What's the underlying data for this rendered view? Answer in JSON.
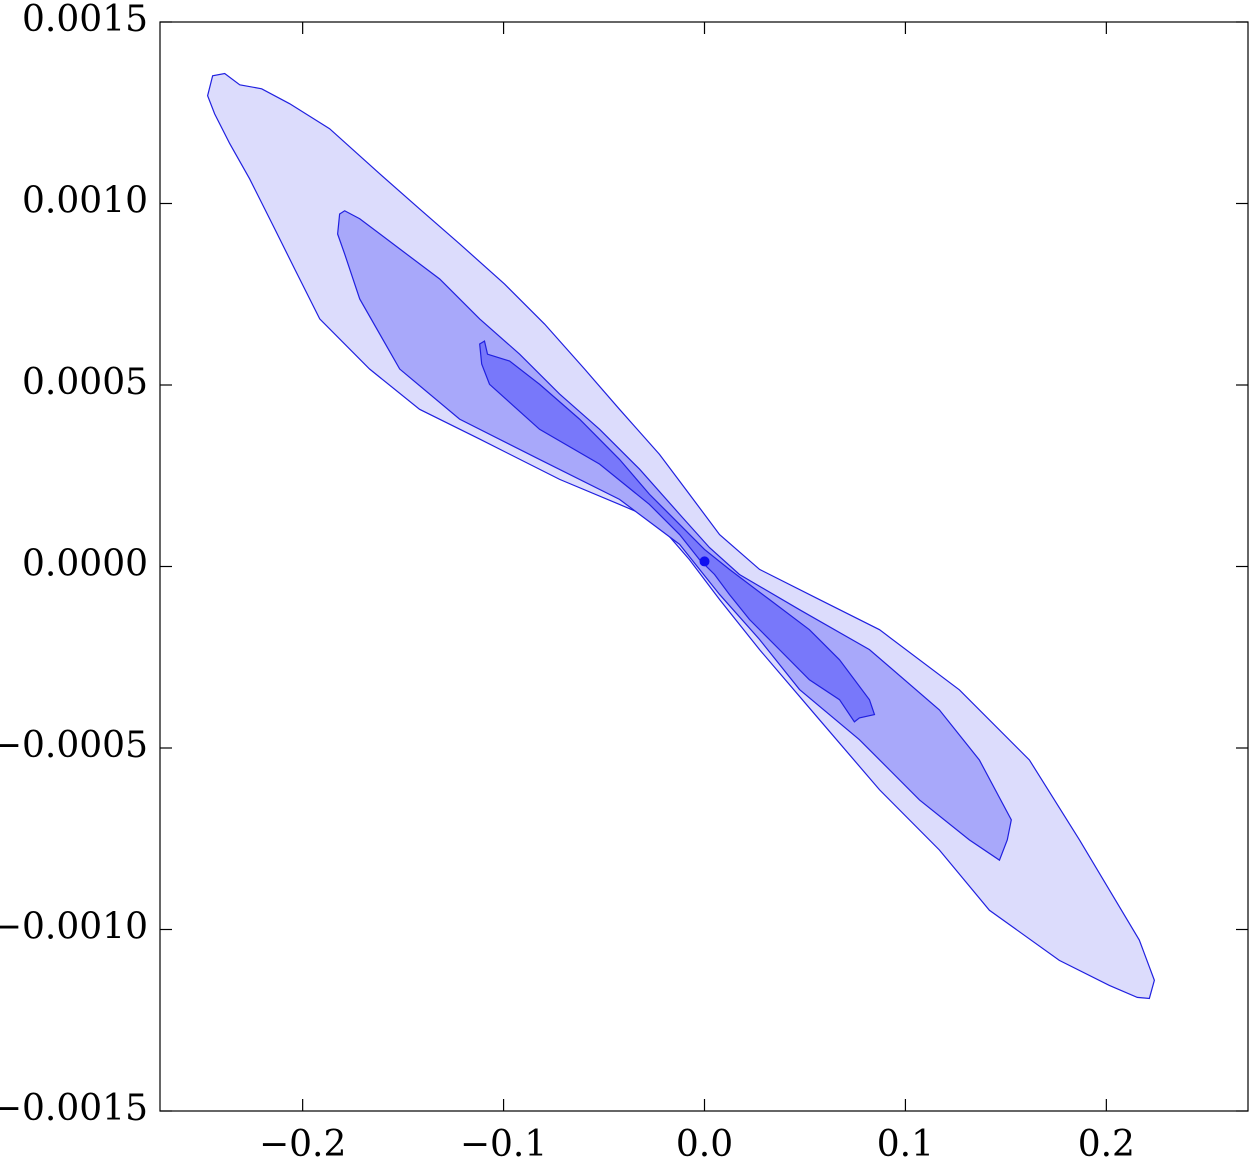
{
  "chart_data": {
    "type": "contour",
    "xlim": [
      -0.271,
      0.2705
    ],
    "ylim": [
      -0.0015,
      0.0015
    ],
    "xticks": [
      {
        "value": -0.2,
        "label": "−0.2"
      },
      {
        "value": -0.1,
        "label": "−0.1"
      },
      {
        "value": 0,
        "label": "0.0"
      },
      {
        "value": 0.1,
        "label": "0.1"
      },
      {
        "value": 0.2,
        "label": "0.2"
      }
    ],
    "yticks": [
      {
        "value": -0.0015,
        "label": "−0.0015"
      },
      {
        "value": -0.001,
        "label": "−0.0010"
      },
      {
        "value": -0.0005,
        "label": "−0.0005"
      },
      {
        "value": 0,
        "label": "0.0000"
      },
      0.0005,
      {
        "value": 0.001,
        "label": "0.0010"
      },
      0.0015
    ],
    "series": [
      {
        "color": "#dcdcfc",
        "x": [
          -0.2473,
          -0.2448,
          -0.2388,
          -0.2313,
          -0.2204,
          -0.2065,
          -0.1866,
          -0.1617,
          -0.1418,
          -0.1219,
          -0.0995,
          -0.0796,
          -0.0597,
          -0.0423,
          -0.0224,
          -0.0075,
          0.0075,
          0.0274,
          0.0572,
          0.0871,
          0.1269,
          0.1617,
          0.1866,
          0.2015,
          0.2164,
          0.2239,
          0.2214,
          0.2154,
          0.2015,
          0.1766,
          0.1418,
          0.1169,
          0.0871,
          0.0572,
          0.0274,
          0.0075,
          -0.0075,
          -0.0249,
          -0.0423,
          -0.0721,
          -0.1119,
          -0.1418,
          -0.1667,
          -0.1915,
          -0.204,
          -0.2139,
          -0.2264,
          -0.2363,
          -0.2438
        ],
        "y": [
          0.001297,
          0.001352,
          0.001358,
          0.001327,
          0.001316,
          0.001275,
          0.001206,
          0.001082,
          0.000985,
          0.000889,
          0.000778,
          0.000668,
          0.000544,
          0.000433,
          0.000309,
          0.000199,
          8.8e-05,
          -8e-06,
          -9.1e-05,
          -0.000174,
          -0.00034,
          -0.000533,
          -0.000753,
          -0.000891,
          -0.001029,
          -0.00114,
          -0.00119,
          -0.001187,
          -0.001154,
          -0.001085,
          -0.000947,
          -0.000781,
          -0.000615,
          -0.000422,
          -0.000229,
          -9.1e-05,
          1.9e-05,
          0.00013,
          0.000171,
          0.00024,
          0.000351,
          0.000433,
          0.000544,
          0.000682,
          0.00082,
          0.00093,
          0.001068,
          0.001165,
          0.001247
        ]
      },
      {
        "color": "#a8a8fa",
        "x": [
          -0.1816,
          -0.1791,
          -0.1716,
          -0.1517,
          -0.1318,
          -0.1119,
          -0.092,
          -0.0721,
          -0.0522,
          -0.0323,
          -0.0124,
          0.0025,
          0.0174,
          0.0473,
          0.0821,
          0.1169,
          0.1368,
          0.1527,
          0.1507,
          0.1468,
          0.1318,
          0.107,
          0.0771,
          0.0473,
          0.0274,
          0.0075,
          -0.0124,
          -0.0423,
          -0.0821,
          -0.1219,
          -0.1517,
          -0.1716,
          -0.1791,
          -0.1826
        ],
        "y": [
          0.000971,
          0.00098,
          0.000958,
          0.000875,
          0.000792,
          0.000682,
          0.000585,
          0.000475,
          0.000378,
          0.000268,
          0.000144,
          5.2e-05,
          -2.2e-05,
          -0.000119,
          -0.000229,
          -0.000395,
          -0.000533,
          -0.000698,
          -0.000753,
          -0.000809,
          -0.000753,
          -0.000643,
          -0.000477,
          -0.000339,
          -0.000201,
          -7.7e-05,
          6.1e-05,
          0.000185,
          0.000295,
          0.000406,
          0.000544,
          0.000737,
          0.000861,
          0.000916
        ]
      },
      {
        "color": "#7878fa",
        "x": [
          -0.1119,
          -0.1095,
          -0.108,
          -0.097,
          -0.0821,
          -0.0622,
          -0.0423,
          -0.0274,
          -0.0124,
          0,
          0.0124,
          0.0323,
          0.0522,
          0.0672,
          0.0821,
          0.0846,
          0.0771,
          0.0746,
          0.0672,
          0.0522,
          0.0373,
          0.0224,
          0.0124,
          0.005,
          -0.0025,
          -0.0124,
          -0.0274,
          -0.0522,
          -0.0821,
          -0.107,
          -0.1109
        ],
        "y": [
          0.000613,
          0.000621,
          0.000585,
          0.000566,
          0.000502,
          0.000406,
          0.000295,
          0.000199,
          0.000116,
          4.7e-05,
          -8e-06,
          -9.1e-05,
          -0.000174,
          -0.000257,
          -0.000367,
          -0.000408,
          -0.000417,
          -0.000428,
          -0.000367,
          -0.000312,
          -0.000229,
          -0.000146,
          -7.7e-05,
          -2.2e-05,
          1.9e-05,
          8.8e-05,
          0.000171,
          0.000282,
          0.000378,
          0.000502,
          0.000558
        ]
      }
    ],
    "line_color": "#2020e0",
    "point": {
      "x": 0,
      "y": 1.4e-05,
      "color": "#1010f0"
    }
  }
}
